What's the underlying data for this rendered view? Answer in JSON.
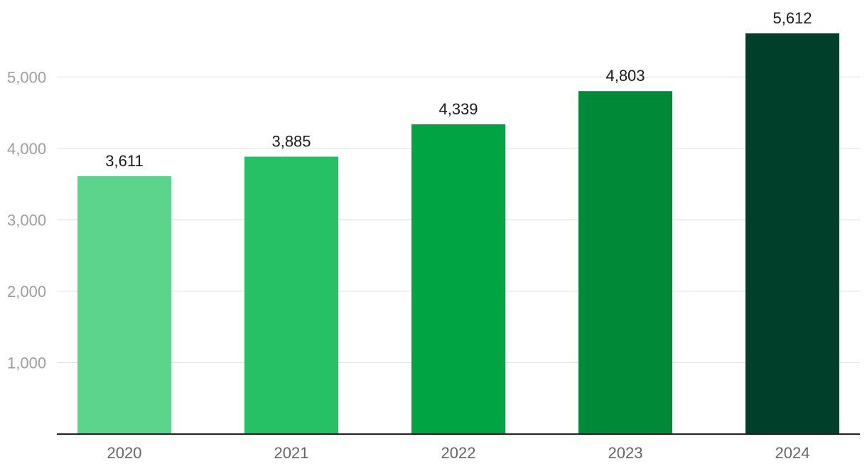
{
  "chart_data": {
    "type": "bar",
    "categories": [
      "2020",
      "2021",
      "2022",
      "2023",
      "2024"
    ],
    "values": [
      3611,
      3885,
      4339,
      4803,
      5612
    ],
    "value_labels": [
      "3,611",
      "3,885",
      "4,339",
      "4,803",
      "5,612"
    ],
    "bar_colors": [
      "#5cd48c",
      "#26c164",
      "#00a443",
      "#008a38",
      "#003f2a"
    ],
    "title": "",
    "xlabel": "",
    "ylabel": "",
    "ylim": [
      0,
      5800
    ],
    "yticks": [
      1000,
      2000,
      3000,
      4000,
      5000
    ],
    "ytick_labels": [
      "1,000",
      "2,000",
      "3,000",
      "4,000",
      "5,000"
    ],
    "grid": true,
    "legend": "none"
  }
}
